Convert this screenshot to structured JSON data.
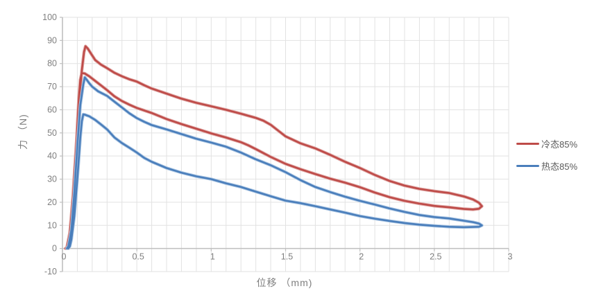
{
  "chart_data": {
    "type": "line",
    "title": "",
    "xlabel": "位移 （mm)",
    "ylabel": "力 （N)",
    "xlim": [
      0,
      3
    ],
    "ylim": [
      -10,
      100
    ],
    "x_ticks": [
      0,
      0.5,
      1,
      1.5,
      2,
      2.5,
      3
    ],
    "x_tick_labels": [
      "0",
      "0.5",
      "1",
      "1.5",
      "2",
      "2.5",
      "3"
    ],
    "y_ticks": [
      -10,
      0,
      10,
      20,
      30,
      40,
      50,
      60,
      70,
      80,
      90,
      100
    ],
    "x_minor_step": 0.1,
    "grid": true,
    "gridline_color": "#e2e2e2",
    "axis_line_color": "#bfbfbf",
    "tick_label_color": "#7f7f7f",
    "legend_position": "right",
    "series": [
      {
        "name": "冷态85%",
        "color": "#be4b48",
        "halo": "#e0a9a7",
        "points": [
          [
            0.02,
            0
          ],
          [
            0.03,
            0.5
          ],
          [
            0.05,
            7
          ],
          [
            0.07,
            22
          ],
          [
            0.09,
            42
          ],
          [
            0.11,
            62
          ],
          [
            0.13,
            77
          ],
          [
            0.145,
            85
          ],
          [
            0.155,
            87.5
          ],
          [
            0.17,
            86.5
          ],
          [
            0.19,
            84.5
          ],
          [
            0.22,
            81.5
          ],
          [
            0.26,
            79.5
          ],
          [
            0.3,
            78
          ],
          [
            0.35,
            76
          ],
          [
            0.4,
            74.5
          ],
          [
            0.45,
            73.2
          ],
          [
            0.5,
            72.2
          ],
          [
            0.55,
            70.6
          ],
          [
            0.6,
            69.2
          ],
          [
            0.7,
            67
          ],
          [
            0.8,
            64.8
          ],
          [
            0.9,
            63
          ],
          [
            1.0,
            61.5
          ],
          [
            1.1,
            60
          ],
          [
            1.2,
            58.3
          ],
          [
            1.3,
            56.5
          ],
          [
            1.35,
            55.3
          ],
          [
            1.4,
            53.5
          ],
          [
            1.45,
            51
          ],
          [
            1.5,
            48.5
          ],
          [
            1.6,
            45.5
          ],
          [
            1.7,
            43.3
          ],
          [
            1.8,
            40.5
          ],
          [
            1.9,
            37.5
          ],
          [
            2.0,
            34.8
          ],
          [
            2.1,
            31.8
          ],
          [
            2.2,
            29.2
          ],
          [
            2.3,
            27.2
          ],
          [
            2.4,
            25.8
          ],
          [
            2.5,
            24.8
          ],
          [
            2.6,
            24
          ],
          [
            2.7,
            22.5
          ],
          [
            2.76,
            21.2
          ],
          [
            2.8,
            19.8
          ],
          [
            2.82,
            18.3
          ],
          [
            2.8,
            17.2
          ],
          [
            2.76,
            16.9
          ],
          [
            2.7,
            17.1
          ],
          [
            2.6,
            17.8
          ],
          [
            2.5,
            18.4
          ],
          [
            2.4,
            19.4
          ],
          [
            2.3,
            20.6
          ],
          [
            2.2,
            22.2
          ],
          [
            2.1,
            24.2
          ],
          [
            2.0,
            26.5
          ],
          [
            1.9,
            28.5
          ],
          [
            1.8,
            30.2
          ],
          [
            1.7,
            32.2
          ],
          [
            1.6,
            34.3
          ],
          [
            1.5,
            36.6
          ],
          [
            1.4,
            39.6
          ],
          [
            1.3,
            43
          ],
          [
            1.25,
            44.6
          ],
          [
            1.2,
            46
          ],
          [
            1.1,
            48
          ],
          [
            1.0,
            49.8
          ],
          [
            0.9,
            51.8
          ],
          [
            0.8,
            53.8
          ],
          [
            0.7,
            56
          ],
          [
            0.6,
            58.6
          ],
          [
            0.5,
            60.8
          ],
          [
            0.45,
            62.2
          ],
          [
            0.4,
            63.8
          ],
          [
            0.35,
            65.8
          ],
          [
            0.3,
            68.5
          ],
          [
            0.26,
            70.5
          ],
          [
            0.22,
            72.5
          ],
          [
            0.18,
            74.5
          ],
          [
            0.15,
            75.7
          ],
          [
            0.13,
            76
          ],
          [
            0.12,
            73
          ],
          [
            0.11,
            65
          ],
          [
            0.1,
            53
          ],
          [
            0.09,
            40
          ],
          [
            0.07,
            18
          ],
          [
            0.05,
            5
          ],
          [
            0.04,
            1
          ],
          [
            0.03,
            0
          ]
        ]
      },
      {
        "name": "热态85%",
        "color": "#4a7ebb",
        "halo": "#aec8e4",
        "points": [
          [
            0.03,
            0
          ],
          [
            0.04,
            1
          ],
          [
            0.06,
            8
          ],
          [
            0.08,
            24
          ],
          [
            0.1,
            44
          ],
          [
            0.12,
            62
          ],
          [
            0.14,
            71
          ],
          [
            0.15,
            74
          ],
          [
            0.165,
            72.8
          ],
          [
            0.18,
            71.5
          ],
          [
            0.2,
            70
          ],
          [
            0.24,
            68
          ],
          [
            0.3,
            66
          ],
          [
            0.35,
            63.5
          ],
          [
            0.4,
            61
          ],
          [
            0.45,
            58.5
          ],
          [
            0.5,
            56.4
          ],
          [
            0.55,
            54.8
          ],
          [
            0.6,
            53.4
          ],
          [
            0.7,
            51.5
          ],
          [
            0.8,
            49.5
          ],
          [
            0.9,
            47.5
          ],
          [
            1.0,
            45.8
          ],
          [
            1.1,
            44
          ],
          [
            1.2,
            41.5
          ],
          [
            1.3,
            38.6
          ],
          [
            1.4,
            36
          ],
          [
            1.5,
            33
          ],
          [
            1.6,
            29.6
          ],
          [
            1.7,
            26.6
          ],
          [
            1.8,
            24.4
          ],
          [
            1.9,
            22.4
          ],
          [
            2.0,
            20.6
          ],
          [
            2.1,
            19
          ],
          [
            2.2,
            17.3
          ],
          [
            2.3,
            15.8
          ],
          [
            2.4,
            14.5
          ],
          [
            2.5,
            13.6
          ],
          [
            2.6,
            13
          ],
          [
            2.7,
            12
          ],
          [
            2.76,
            11.4
          ],
          [
            2.8,
            10.8
          ],
          [
            2.82,
            10
          ],
          [
            2.8,
            9.4
          ],
          [
            2.7,
            9.2
          ],
          [
            2.6,
            9.4
          ],
          [
            2.5,
            9.8
          ],
          [
            2.4,
            10.3
          ],
          [
            2.3,
            11
          ],
          [
            2.2,
            11.9
          ],
          [
            2.1,
            12.9
          ],
          [
            2.0,
            14
          ],
          [
            1.9,
            15.5
          ],
          [
            1.8,
            16.9
          ],
          [
            1.7,
            18.3
          ],
          [
            1.6,
            19.6
          ],
          [
            1.5,
            20.7
          ],
          [
            1.4,
            22.6
          ],
          [
            1.3,
            24.6
          ],
          [
            1.2,
            26.6
          ],
          [
            1.1,
            28.2
          ],
          [
            1.0,
            30
          ],
          [
            0.9,
            31.2
          ],
          [
            0.8,
            32.8
          ],
          [
            0.7,
            34.8
          ],
          [
            0.6,
            37.5
          ],
          [
            0.55,
            39.2
          ],
          [
            0.5,
            41.5
          ],
          [
            0.45,
            43.6
          ],
          [
            0.4,
            45.6
          ],
          [
            0.35,
            48
          ],
          [
            0.3,
            51.5
          ],
          [
            0.26,
            53.6
          ],
          [
            0.22,
            55.6
          ],
          [
            0.18,
            57.2
          ],
          [
            0.15,
            57.9
          ],
          [
            0.14,
            58
          ],
          [
            0.13,
            55
          ],
          [
            0.12,
            48
          ],
          [
            0.11,
            39
          ],
          [
            0.1,
            30
          ],
          [
            0.08,
            14
          ],
          [
            0.06,
            4
          ],
          [
            0.05,
            1
          ],
          [
            0.04,
            0
          ]
        ]
      }
    ]
  }
}
